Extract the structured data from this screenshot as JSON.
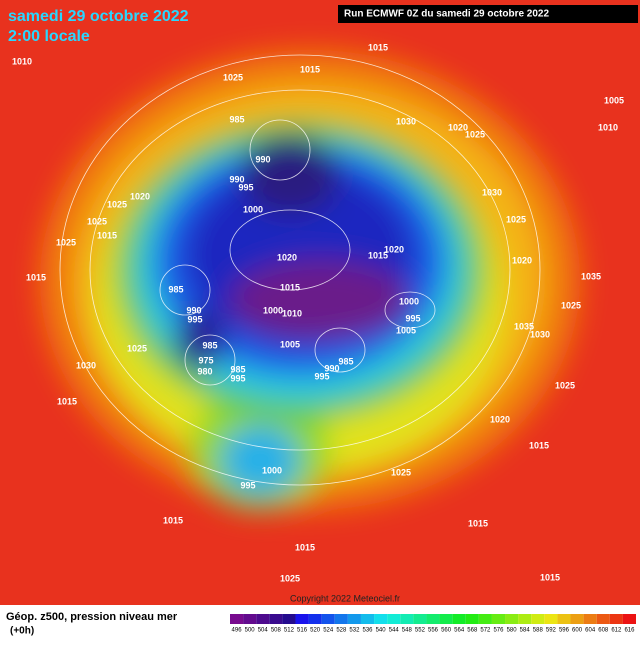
{
  "header": {
    "date": "samedi 29 octobre 2022",
    "time": "2:00 locale",
    "run": "Run ECMWF 0Z du samedi 29 octobre 2022"
  },
  "copyright": "Copyright 2022 Meteociel.fr",
  "footer": {
    "title": "Géop. z500, pression niveau mer",
    "step": "(+0h)"
  },
  "scale_labels": [
    496,
    500,
    504,
    508,
    512,
    516,
    520,
    524,
    528,
    532,
    536,
    540,
    544,
    548,
    552,
    556,
    560,
    564,
    568,
    572,
    576,
    580,
    584,
    588,
    592,
    596,
    600,
    604,
    608,
    612,
    616
  ],
  "isobar_labels": [
    1010,
    1025,
    1015,
    1015,
    985,
    1030,
    1020,
    1025,
    990,
    990,
    995,
    1020,
    1025,
    1000,
    1030,
    1025,
    1025,
    1015,
    1025,
    1020,
    1015,
    1020,
    1020,
    1015,
    985,
    1015,
    1000,
    1035,
    990,
    995,
    1000,
    1010,
    995,
    1005,
    1025,
    1035,
    1030,
    1005,
    985,
    1025,
    985,
    975,
    980,
    990,
    985,
    995,
    995,
    1030,
    1025,
    1015,
    1020,
    1015,
    1000,
    995,
    1025,
    1015,
    1015,
    1015,
    1025,
    1015,
    1005,
    1010
  ]
}
